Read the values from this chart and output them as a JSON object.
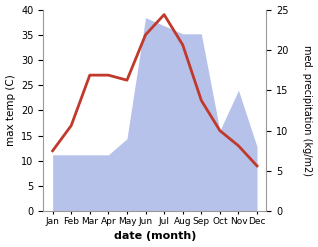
{
  "months": [
    "Jan",
    "Feb",
    "Mar",
    "Apr",
    "May",
    "Jun",
    "Jul",
    "Aug",
    "Sep",
    "Oct",
    "Nov",
    "Dec"
  ],
  "temperature": [
    12,
    17,
    27,
    27,
    26,
    35,
    39,
    33,
    22,
    16,
    13,
    9
  ],
  "precipitation": [
    7,
    7,
    7,
    7,
    9,
    24,
    23,
    22,
    22,
    10,
    15,
    8
  ],
  "temp_color": "#c0392b",
  "precip_fill_color": "#b0bce8",
  "ylabel_left": "max temp (C)",
  "ylabel_right": "med. precipitation (kg/m2)",
  "xlabel": "date (month)",
  "ylim_left": [
    0,
    40
  ],
  "ylim_right": [
    0,
    25
  ],
  "background": "#ffffff"
}
